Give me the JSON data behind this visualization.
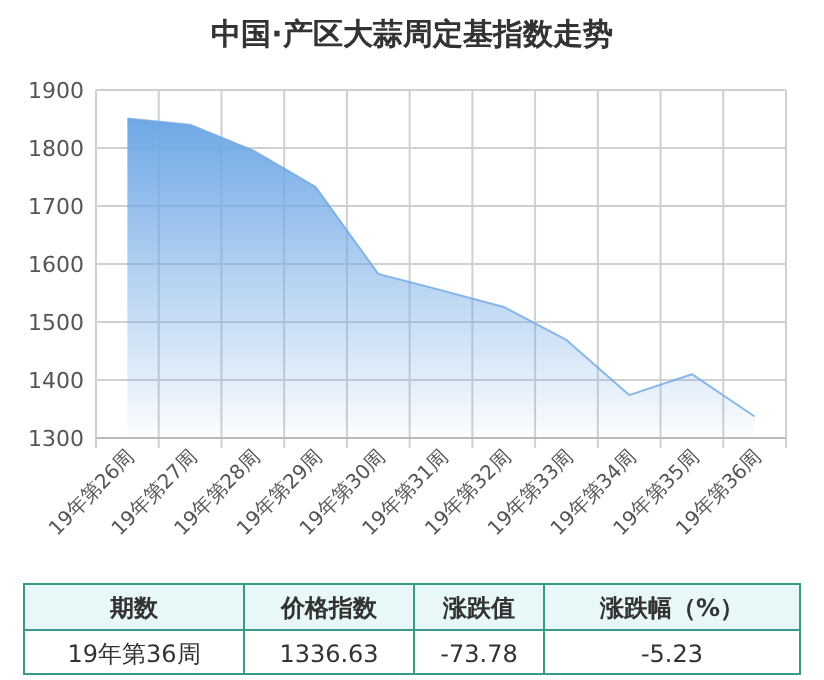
{
  "chart_data": {
    "type": "area",
    "title": "中国·产区大蒜周定基指数走势",
    "categories": [
      "19年第26周",
      "19年第27周",
      "19年第28周",
      "19年第29周",
      "19年第30周",
      "19年第31周",
      "19年第32周",
      "19年第33周",
      "19年第34周",
      "19年第35周",
      "19年第36周"
    ],
    "series": [
      {
        "color": "#6fa8e6",
        "values": [
          1851,
          1840,
          1796,
          1733,
          1583,
          1555,
          1526,
          1469,
          1374,
          1410,
          1337
        ]
      }
    ],
    "ylim": [
      1300,
      1900
    ],
    "yticks": [
      1300,
      1400,
      1500,
      1600,
      1700,
      1800,
      1900
    ],
    "grid": true,
    "marker": "none",
    "annotations": [
      "期数",
      "价格指数",
      "涨跌值",
      "涨跌幅（%）",
      "19年第36周",
      "1336.63",
      "-73.78",
      "-5.23"
    ]
  }
}
